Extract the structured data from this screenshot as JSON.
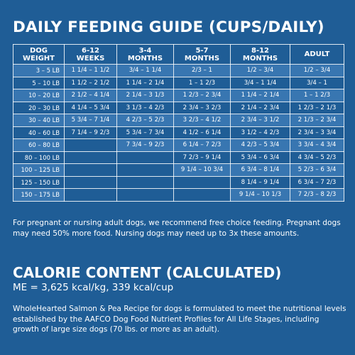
{
  "title": "DAILY FEEDING GUIDE (CUPS/DAILY)",
  "table": {
    "headers": [
      [
        "DOG",
        "WEIGHT"
      ],
      [
        "6-12",
        "WEEKS"
      ],
      [
        "3-4",
        "MONTHS"
      ],
      [
        "5-7",
        "MONTHS"
      ],
      [
        "8-12",
        "MONTHS"
      ],
      [
        "ADULT",
        ""
      ]
    ],
    "rows": [
      [
        "3 – 5 LB",
        "1 1/4 – 1 1/2",
        "3/4 – 1 1/4",
        "2/3 – 1",
        "1/2 – 3/4",
        "1/2 – 3/4"
      ],
      [
        "5 – 10 LB",
        "1 1/2 – 2 1/2",
        "1 1/4 – 2 1/4",
        "1 – 1 2/3",
        "3/4 – 1 1/4",
        "3/4 – 1"
      ],
      [
        "10 – 20 LB",
        "2 1/2 – 4 1/4",
        "2 1/4 – 3 1/3",
        "1 2/3 – 2 3/4",
        "1 1/4 – 2 1/4",
        "1 – 1 2/3"
      ],
      [
        "20 – 30 LB",
        "4 1/4 – 5 3/4",
        "3 1/3 – 4 2/3",
        "2 3/4 – 3 2/3",
        "2 1/4 – 2 3/4",
        "1 2/3 – 2 1/3"
      ],
      [
        "30 – 40 LB",
        "5 3/4 – 7 1/4",
        "4 2/3 – 5 2/3",
        "3 2/3 – 4 1/2",
        "2 3/4 – 3 1/2",
        "2 1/3 – 2 3/4"
      ],
      [
        "40 – 60 LB",
        "7 1/4 – 9 2/3",
        "5 3/4 – 7 3/4",
        "4 1/2 – 6 1/4",
        "3 1/2 – 4 2/3",
        "2 3/4 – 3 3/4"
      ],
      [
        "60 – 80 LB",
        "",
        "7 3/4 – 9 2/3",
        "6 1/4 – 7 2/3",
        "4 2/3 – 5 3/4",
        "3 3/4 – 4 3/4"
      ],
      [
        "80 – 100 LB",
        "",
        "",
        "7 2/3 – 9 1/4",
        "5 3/4 – 6 3/4",
        "4 3/4 – 5 2/3"
      ],
      [
        "100 – 125 LB",
        "",
        "",
        "9 1/4 – 10 3/4",
        "6 3/4 – 8 1/4",
        "5 2/3 – 6 3/4"
      ],
      [
        "125 – 150 LB",
        "",
        "",
        "",
        "8 1/4 – 9 1/4",
        "6 3/4 – 7 2/3"
      ],
      [
        "150 – 175 LB",
        "",
        "",
        "",
        "9 1/4 – 10 1/3",
        "7 2/3 – 8 2/3"
      ]
    ]
  },
  "note": "For pregnant or nursing adult dogs, we recommend free choice feeding. Pregnant dogs may need 50% more food. Nursing dogs may need up to 3x these amounts.",
  "calorie": {
    "title": "CALORIE CONTENT (CALCULATED)",
    "value": "ME = 3,625 kcal/kg, 339 kcal/cup"
  },
  "description": "WholeHearted Salmon & Pea Recipe for dogs is formulated to meet the nutritional levels established by the AAFCO Dog Food Nutrient Profiles for All Life Stages, including growth of large size dogs (70 lbs. or more as an adult).",
  "colors": {
    "background": "#1f5d96",
    "row_stripe": "#3876b1",
    "text": "#ffffff"
  }
}
